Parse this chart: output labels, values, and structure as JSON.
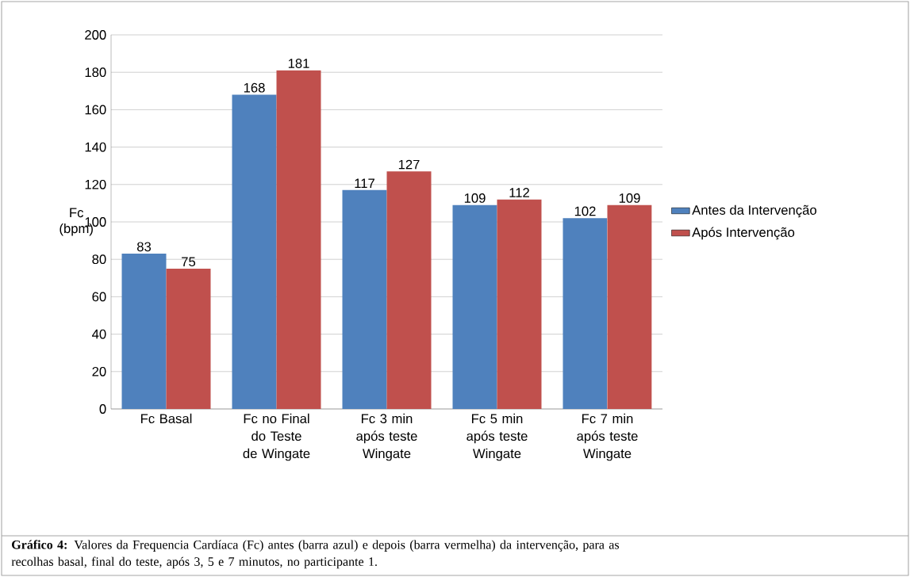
{
  "chart_data": {
    "type": "bar",
    "ylabel": "Fc (bpm)",
    "categories": [
      "Fc Basal",
      "Fc no Final do Teste de Wingate",
      "Fc 3 min após teste Wingate",
      "Fc 5 min após teste Wingate",
      "Fc 7 min após teste Wingate"
    ],
    "series": [
      {
        "name": "Antes da Intervenção",
        "color": "#4f81bd",
        "values": [
          83,
          168,
          117,
          109,
          102
        ]
      },
      {
        "name": "Após Intervenção",
        "color": "#c0504d",
        "values": [
          75,
          181,
          127,
          112,
          109
        ]
      }
    ],
    "ylim": [
      0,
      200
    ],
    "yticks": [
      0,
      20,
      40,
      60,
      80,
      100,
      120,
      140,
      160,
      180,
      200
    ],
    "grid": "y",
    "legend": "right",
    "data_labels": true,
    "annotations": [
      "**Gráfico 4:** Valores da Frequencia Cardíaca (Fc) antes (barra azul) e depois (barra vermelha) da intervenção, para as recolhas basal, final do teste, após 3, 5 e 7 minutos, no participante 1."
    ]
  }
}
